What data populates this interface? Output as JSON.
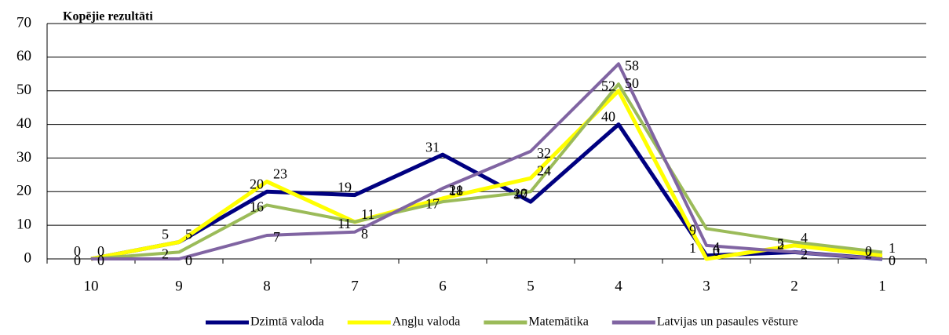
{
  "chart_data": {
    "type": "line",
    "title": "Kopējie rezultāti",
    "categories": [
      "10",
      "9",
      "8",
      "7",
      "6",
      "5",
      "4",
      "3",
      "2",
      "1"
    ],
    "series": [
      {
        "name": "Dzimtā valoda",
        "color": "#000080",
        "values": [
          0,
          5,
          20,
          19,
          31,
          17,
          40,
          1,
          2,
          0
        ]
      },
      {
        "name": "Angļu valoda",
        "color": "#ffff00",
        "values": [
          0,
          5,
          23,
          11,
          18,
          24,
          50,
          0,
          4,
          1
        ]
      },
      {
        "name": "Matemātika",
        "color": "#9bbb59",
        "values": [
          0,
          2,
          16,
          11,
          17,
          20,
          52,
          9,
          5,
          2
        ]
      },
      {
        "name": "Latvijas un pasaules vēsture",
        "color": "#8064a2",
        "values": [
          0,
          0,
          7,
          8,
          21,
          32,
          58,
          4,
          2,
          0
        ]
      }
    ],
    "ylim": [
      0,
      70
    ],
    "yticks": [
      0,
      10,
      20,
      30,
      40,
      50,
      60,
      70
    ],
    "grid": true,
    "legend": "bottom"
  }
}
